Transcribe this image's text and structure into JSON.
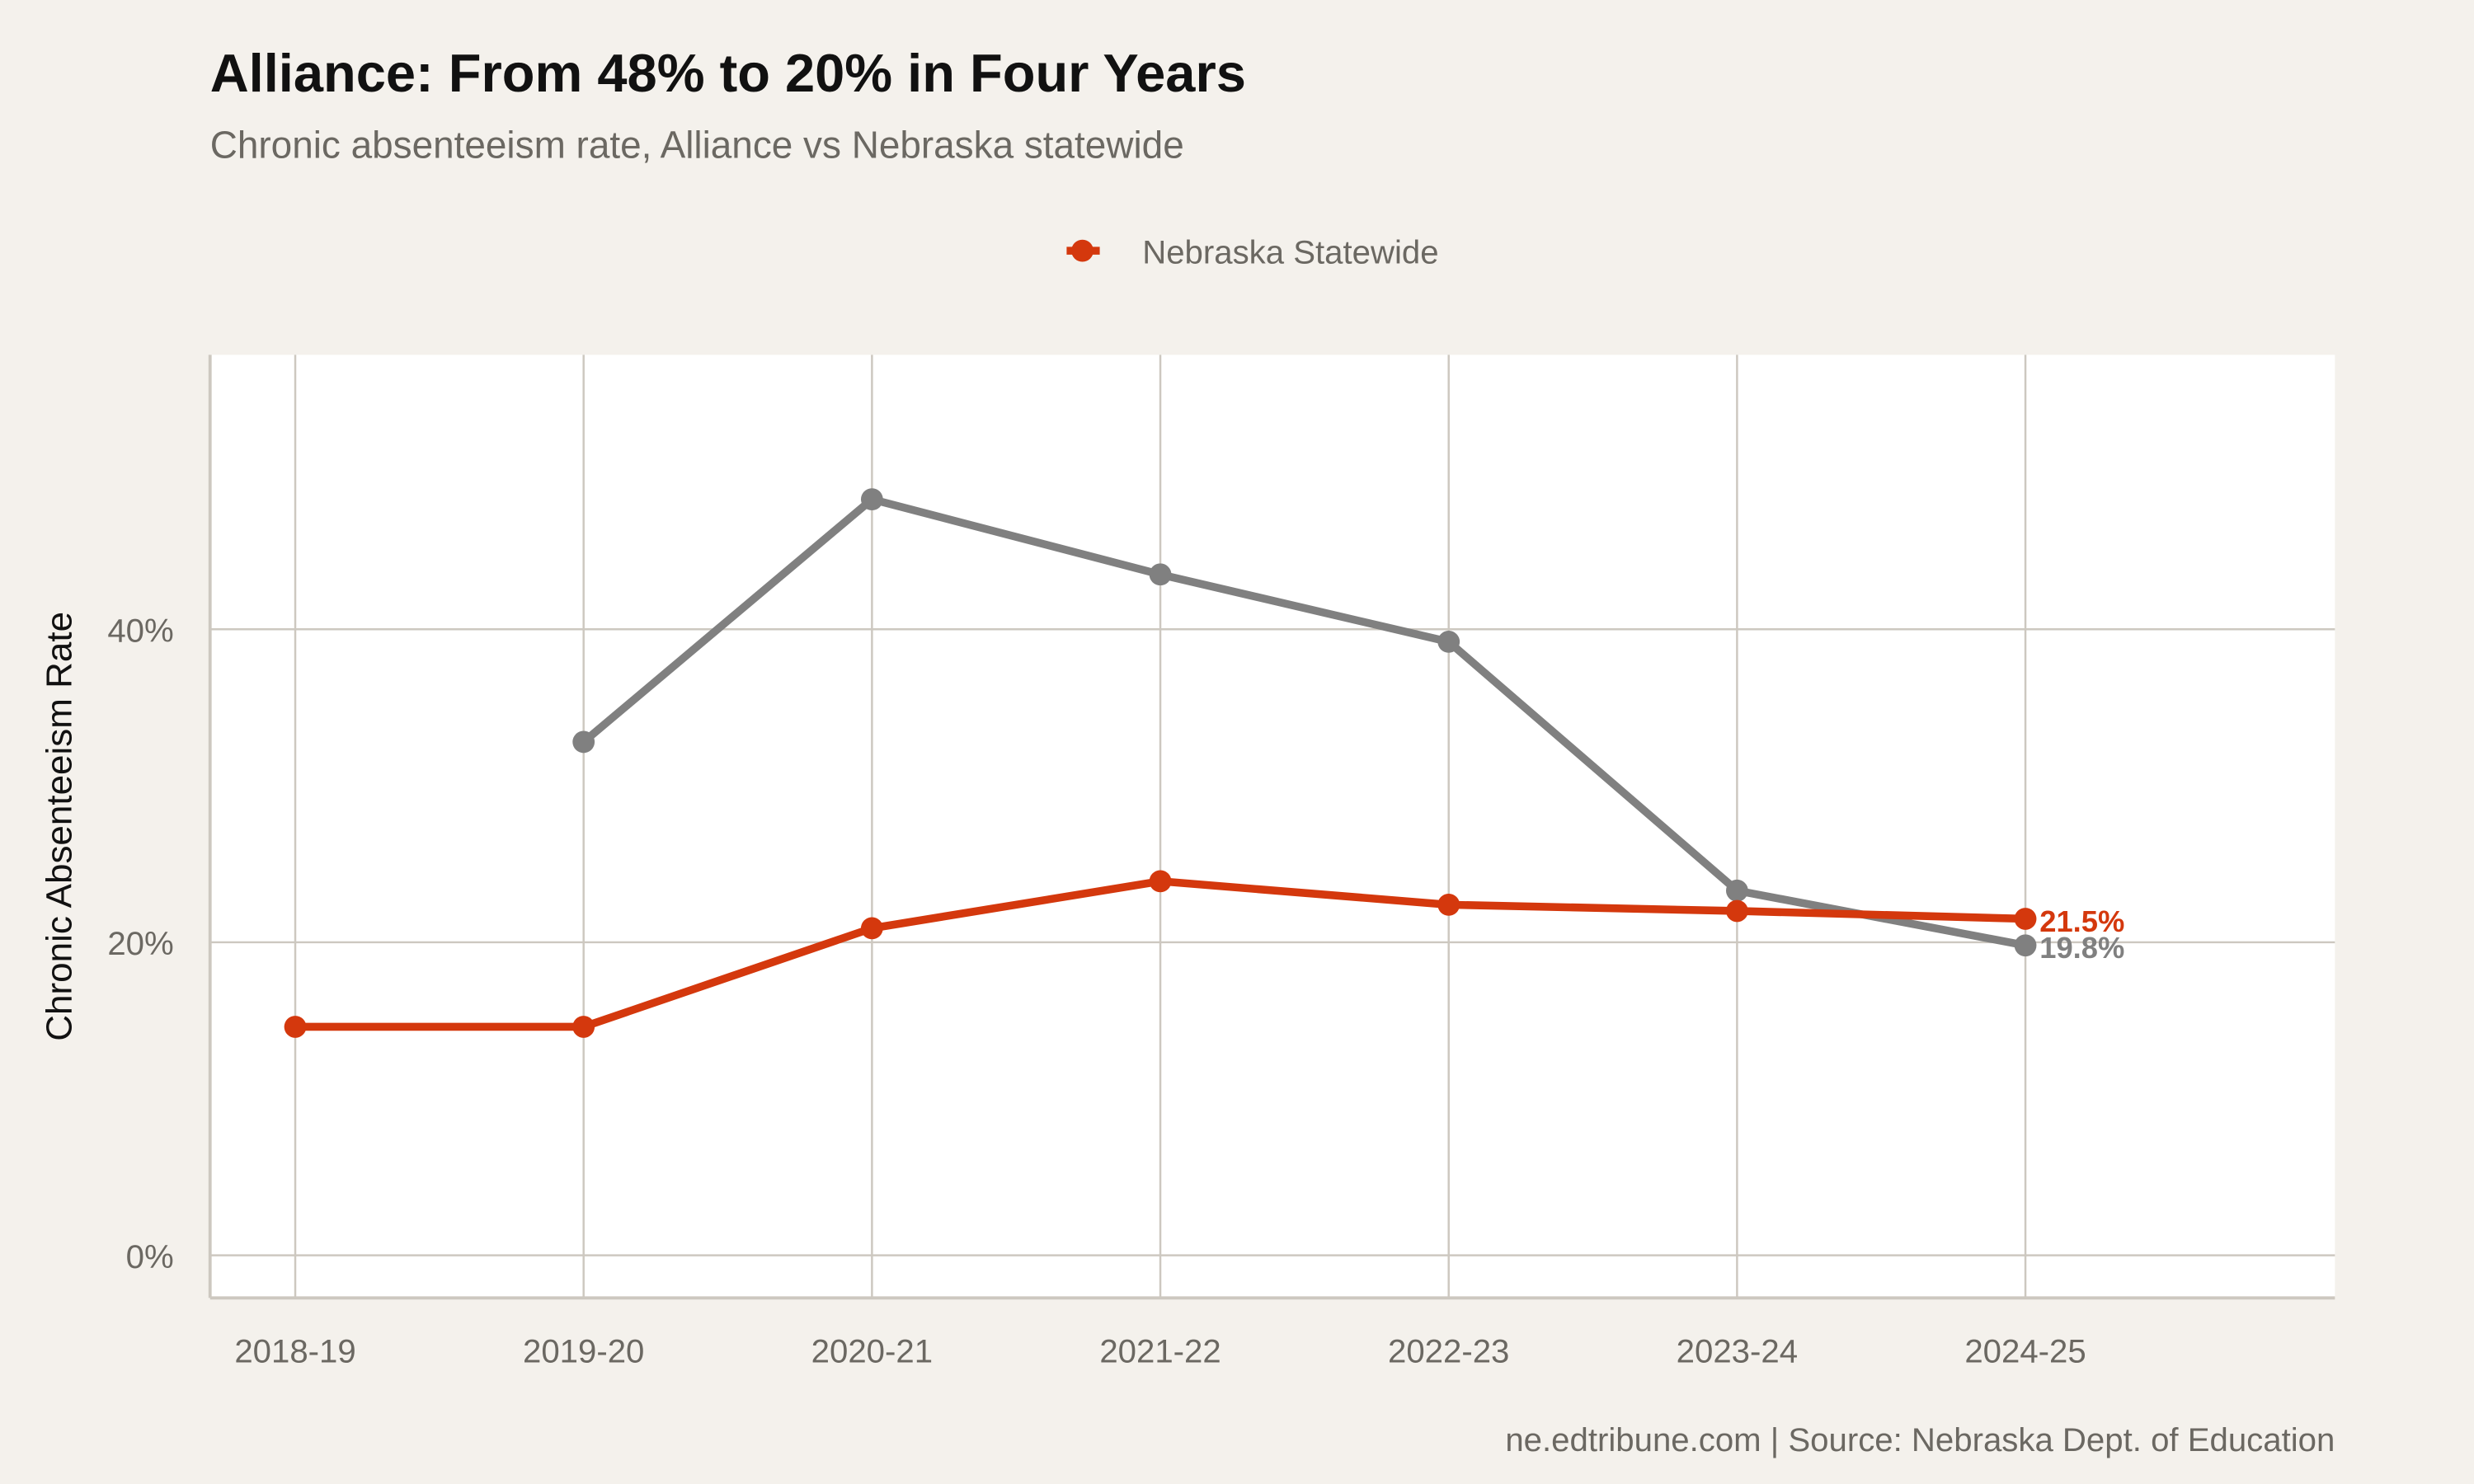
{
  "chart_data": {
    "type": "line",
    "title": "Alliance: From 48% to 20% in Four Years",
    "subtitle": "Chronic absenteeism rate, Alliance vs Nebraska statewide",
    "xlabel": "",
    "ylabel": "Chronic Absenteeism Rate",
    "categories": [
      "2018-19",
      "2019-20",
      "2020-21",
      "2021-22",
      "2022-23",
      "2023-24",
      "2024-25"
    ],
    "y_ticks": [
      0,
      20,
      40
    ],
    "y_tick_labels": [
      "0%",
      "20%",
      "40%"
    ],
    "ylim": [
      -2.7,
      57.5
    ],
    "grid": true,
    "legend_position": "top",
    "series": [
      {
        "key": "alliance",
        "color": "#808080",
        "values": [
          null,
          32.8,
          48.3,
          43.5,
          39.2,
          23.3,
          19.8
        ],
        "end_label": "19.8%"
      },
      {
        "name": "Nebraska Statewide",
        "key": "statewide",
        "color": "#d4380d",
        "values": [
          14.6,
          14.6,
          20.9,
          23.9,
          22.4,
          22.0,
          21.5
        ],
        "end_label": "21.5%"
      }
    ],
    "caption": "ne.edtribune.com | Source: Nebraska Dept. of Education"
  },
  "colors": {
    "background": "#f4f1ec",
    "panel": "#ffffff",
    "grid": "#cdc8c0"
  }
}
